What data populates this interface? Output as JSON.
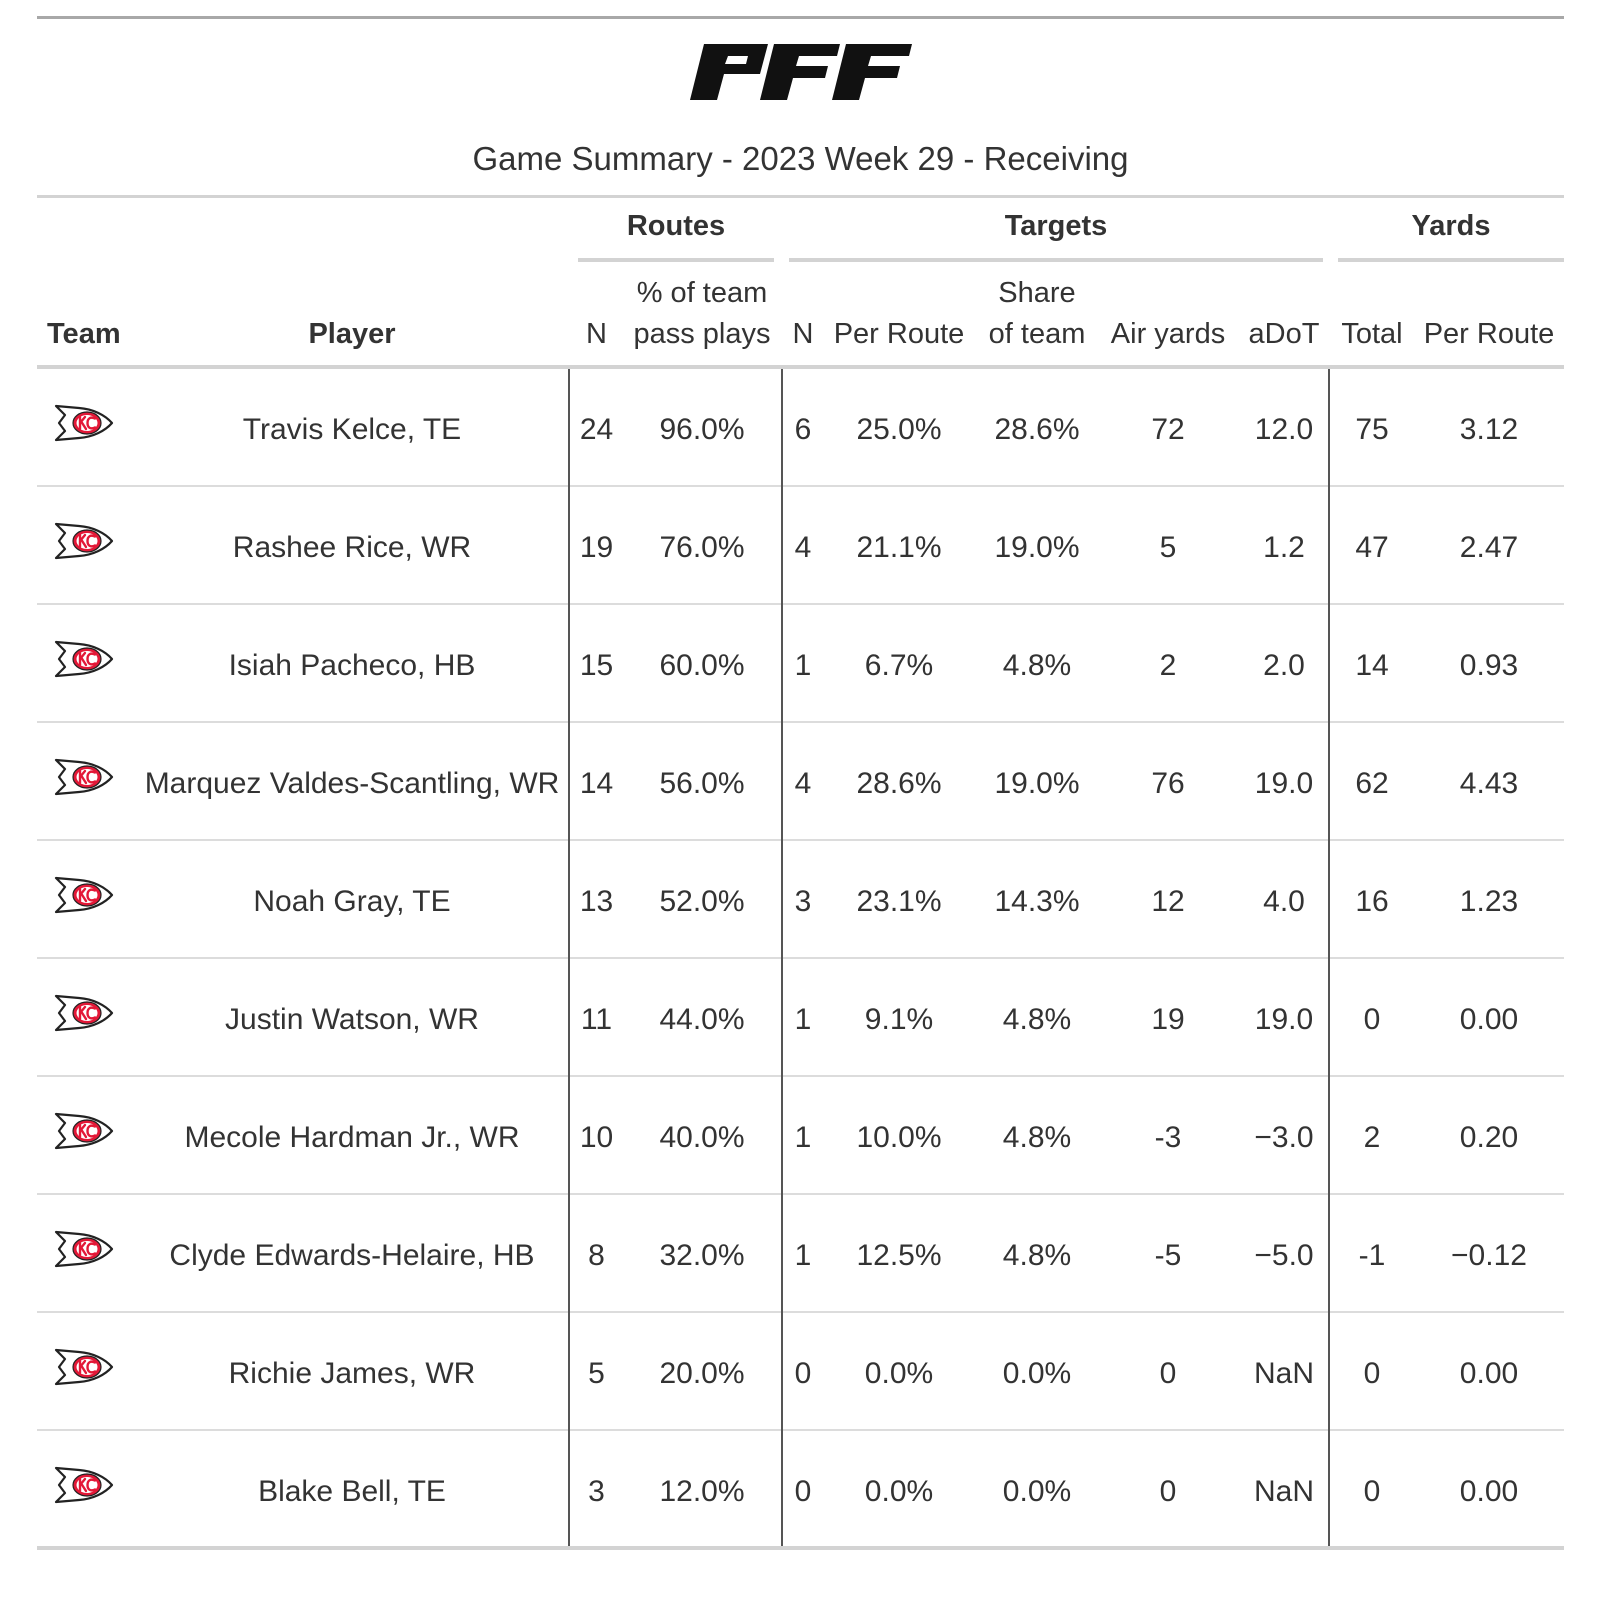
{
  "brand_logo_text": "PFF",
  "title": "Game Summary - 2023 Week 29 - Receiving",
  "spanners": {
    "routes": "Routes",
    "targets": "Targets",
    "yards": "Yards"
  },
  "columns": {
    "team": "Team",
    "player": "Player",
    "routes_n": "N",
    "routes_pct_line1": "% of team",
    "routes_pct_line2": "pass plays",
    "targets_n": "N",
    "targets_per_route": "Per Route",
    "targets_share_line1": "Share",
    "targets_share_line2": "of team",
    "targets_air_yards": "Air yards",
    "targets_adot": "aDoT",
    "yards_total": "Total",
    "yards_per_route": "Per Route"
  },
  "team_logo_icon": "kansas-city-chiefs-logo",
  "colors": {
    "chiefs_red": "#e31837",
    "chiefs_gold": "#ffb81c"
  },
  "rows": [
    {
      "player": "Travis Kelce, TE",
      "routes": "24",
      "pct": "96.0%",
      "targets": "6",
      "per_route": "25.0%",
      "share": "28.6%",
      "air_yards": "72",
      "adot": "12.0",
      "yards": "75",
      "yards_per_route": "3.12"
    },
    {
      "player": "Rashee Rice, WR",
      "routes": "19",
      "pct": "76.0%",
      "targets": "4",
      "per_route": "21.1%",
      "share": "19.0%",
      "air_yards": "5",
      "adot": "1.2",
      "yards": "47",
      "yards_per_route": "2.47"
    },
    {
      "player": "Isiah Pacheco, HB",
      "routes": "15",
      "pct": "60.0%",
      "targets": "1",
      "per_route": "6.7%",
      "share": "4.8%",
      "air_yards": "2",
      "adot": "2.0",
      "yards": "14",
      "yards_per_route": "0.93"
    },
    {
      "player": "Marquez Valdes-Scantling, WR",
      "routes": "14",
      "pct": "56.0%",
      "targets": "4",
      "per_route": "28.6%",
      "share": "19.0%",
      "air_yards": "76",
      "adot": "19.0",
      "yards": "62",
      "yards_per_route": "4.43"
    },
    {
      "player": "Noah Gray, TE",
      "routes": "13",
      "pct": "52.0%",
      "targets": "3",
      "per_route": "23.1%",
      "share": "14.3%",
      "air_yards": "12",
      "adot": "4.0",
      "yards": "16",
      "yards_per_route": "1.23"
    },
    {
      "player": "Justin Watson, WR",
      "routes": "11",
      "pct": "44.0%",
      "targets": "1",
      "per_route": "9.1%",
      "share": "4.8%",
      "air_yards": "19",
      "adot": "19.0",
      "yards": "0",
      "yards_per_route": "0.00"
    },
    {
      "player": "Mecole Hardman Jr., WR",
      "routes": "10",
      "pct": "40.0%",
      "targets": "1",
      "per_route": "10.0%",
      "share": "4.8%",
      "air_yards": "-3",
      "adot": "−3.0",
      "yards": "2",
      "yards_per_route": "0.20"
    },
    {
      "player": "Clyde Edwards-Helaire, HB",
      "routes": "8",
      "pct": "32.0%",
      "targets": "1",
      "per_route": "12.5%",
      "share": "4.8%",
      "air_yards": "-5",
      "adot": "−5.0",
      "yards": "-1",
      "yards_per_route": "−0.12"
    },
    {
      "player": "Richie James, WR",
      "routes": "5",
      "pct": "20.0%",
      "targets": "0",
      "per_route": "0.0%",
      "share": "0.0%",
      "air_yards": "0",
      "adot": "NaN",
      "yards": "0",
      "yards_per_route": "0.00"
    },
    {
      "player": "Blake Bell, TE",
      "routes": "3",
      "pct": "12.0%",
      "targets": "0",
      "per_route": "0.0%",
      "share": "0.0%",
      "air_yards": "0",
      "adot": "NaN",
      "yards": "0",
      "yards_per_route": "0.00"
    }
  ]
}
